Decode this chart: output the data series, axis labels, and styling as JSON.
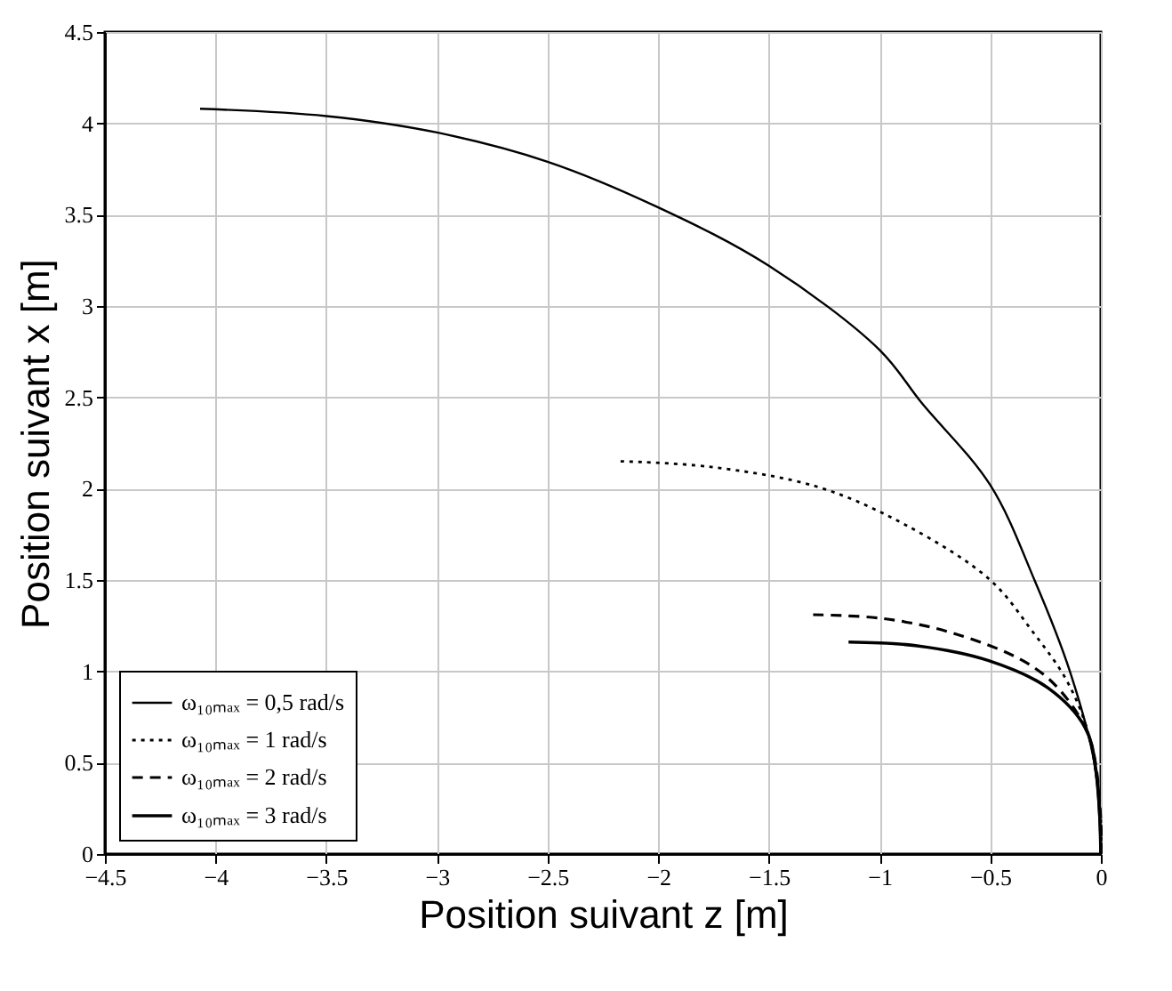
{
  "chart_data": {
    "type": "line",
    "xlabel": "Position suivant z [m]",
    "ylabel": "Position suivant x [m]",
    "xlim": [
      -4.5,
      0
    ],
    "xticks": [
      -4.5,
      -4,
      -3.5,
      -3,
      -2.5,
      -2,
      -1.5,
      -1,
      -0.5,
      0
    ],
    "ylim": [
      0,
      4.5
    ],
    "yticks": [
      0,
      0.5,
      1,
      1.5,
      2,
      2.5,
      3,
      3.5,
      4,
      4.5
    ],
    "grid": true,
    "legend": "bottom left",
    "marker": "none",
    "series": [
      {
        "name": "ω₁₀ₘₐₓ = 0,5 rad/s",
        "color": "#000000",
        "line_style": "solid",
        "x": [
          -4.07,
          -3.5,
          -3,
          -2.5,
          -2,
          -1.5,
          -1,
          -0.81,
          -0.5,
          -0.3,
          -0.14,
          -0.03,
          0
        ],
        "values": [
          4.08,
          4.04,
          3.95,
          3.79,
          3.54,
          3.22,
          2.76,
          2.47,
          2.02,
          1.5,
          1,
          0.5,
          0
        ]
      },
      {
        "name": "ω₁₀ₘₐₓ = 1 rad/s",
        "color": "#000000",
        "line_style": "dotted",
        "x": [
          -2.17,
          -1.77,
          -1.28,
          -0.88,
          -0.5,
          -0.31,
          -0.15,
          -0.05,
          0,
          0
        ],
        "values": [
          2.15,
          2.12,
          2.01,
          1.8,
          1.5,
          1.22,
          0.94,
          0.63,
          0.18,
          0
        ]
      },
      {
        "name": "ω₁₀ₘₐₓ = 2 rad/s",
        "color": "#000000",
        "line_style": "dashed",
        "x": [
          -1.3,
          -0.99,
          -0.67,
          -0.34,
          -0.18,
          -0.05,
          0,
          0
        ],
        "values": [
          1.31,
          1.29,
          1.21,
          1.05,
          0.89,
          0.63,
          0.18,
          0
        ]
      },
      {
        "name": "ω₁₀ₘₐₓ = 3 rad/s",
        "color": "#000000",
        "line_style": "solid",
        "x": [
          -1.14,
          -0.83,
          -0.51,
          -0.24,
          -0.07,
          -0.02,
          0
        ],
        "values": [
          1.16,
          1.14,
          1.06,
          0.91,
          0.69,
          0.44,
          0
        ]
      }
    ]
  }
}
